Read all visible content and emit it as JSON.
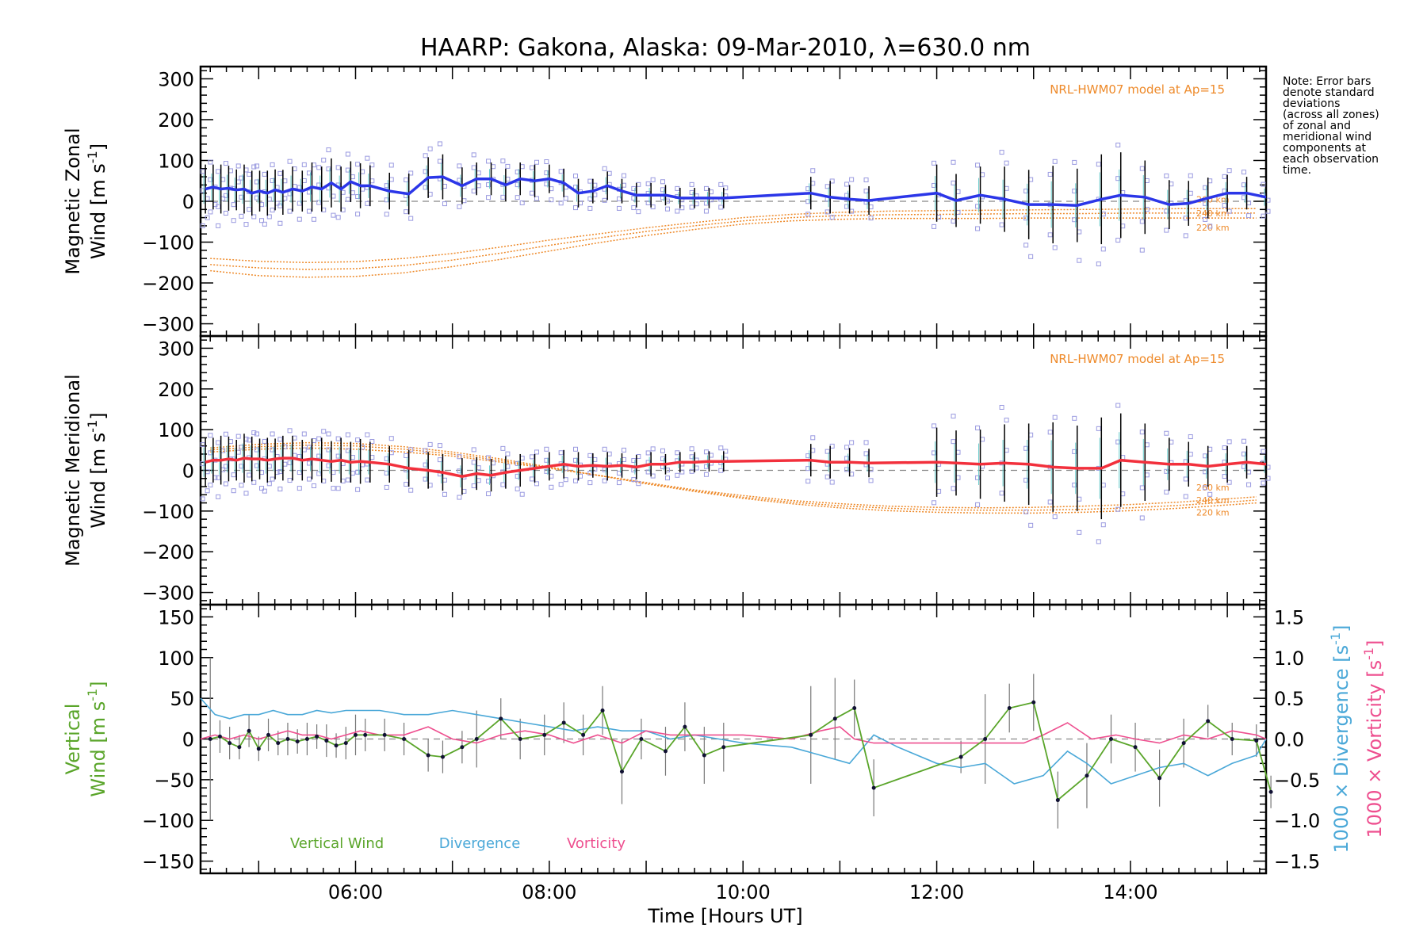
{
  "title": "HAARP: Gakona,  Alaska: 09-Mar-2010, λ=630.0 nm",
  "note_lines": [
    "Note: Error bars",
    "denote standard",
    "deviations",
    "(across all zones)",
    "of zonal and",
    "meridional wind",
    "components at",
    "each observation",
    "time."
  ],
  "xlabel": "Time [Hours UT]",
  "colors": {
    "zonal": "#2b36e8",
    "meridional": "#f2303c",
    "model": "#ee8a2a",
    "vertical": "#5aa52a",
    "divergence": "#4aa8d8",
    "vorticity": "#ee4f8f",
    "scatter": "#9a9ae0"
  },
  "chart_data": [
    {
      "type": "line",
      "panel": "zonal",
      "ylabel_line1": "Magnetic Zonal",
      "ylabel_line2": "Wind [m s",
      "ylabel_sup": "-1",
      "ylabel_close": "]",
      "xlim": [
        4.4,
        15.4
      ],
      "ylim": [
        -330,
        330
      ],
      "x_ticks": [
        6,
        8,
        10,
        12,
        14
      ],
      "x_tick_labels": [
        "06:00",
        "08:00",
        "10:00",
        "12:00",
        "14:00"
      ],
      "y_ticks": [
        -300,
        -200,
        -100,
        0,
        100,
        200,
        300
      ],
      "y_tick_labels": [
        "−300",
        "−200",
        "−100",
        "0",
        "100",
        "200",
        "300"
      ],
      "model_label": "NRL-HWM07 model at Ap=15",
      "model_alt_labels": [
        "260 km",
        "240 km",
        "220 km"
      ],
      "model_series": [
        {
          "x": [
            4.5,
            5.0,
            5.5,
            6.0,
            6.5,
            7.0,
            7.5,
            8.0,
            8.5,
            9.0,
            9.5,
            10.0,
            10.5,
            11.0,
            11.5,
            12.0,
            12.5,
            13.0,
            13.5,
            14.0,
            14.5,
            15.0,
            15.3
          ],
          "y": [
            -140,
            -147,
            -150,
            -148,
            -140,
            -128,
            -112,
            -95,
            -80,
            -65,
            -52,
            -40,
            -32,
            -27,
            -24,
            -23,
            -22,
            -21,
            -20,
            -19,
            -18,
            -18,
            -18
          ]
        },
        {
          "x": [
            4.5,
            5.0,
            5.5,
            6.0,
            6.5,
            7.0,
            7.5,
            8.0,
            8.5,
            9.0,
            9.5,
            10.0,
            10.5,
            11.0,
            11.5,
            12.0,
            12.5,
            13.0,
            13.5,
            14.0,
            14.5,
            15.0,
            15.3
          ],
          "y": [
            -155,
            -163,
            -167,
            -165,
            -157,
            -144,
            -127,
            -108,
            -90,
            -74,
            -60,
            -48,
            -40,
            -35,
            -33,
            -32,
            -31,
            -30,
            -30,
            -29,
            -29,
            -29,
            -29
          ]
        },
        {
          "x": [
            4.5,
            5.0,
            5.5,
            6.0,
            6.5,
            7.0,
            7.5,
            8.0,
            8.5,
            9.0,
            9.5,
            10.0,
            10.5,
            11.0,
            11.5,
            12.0,
            12.5,
            13.0,
            13.5,
            14.0,
            14.5,
            15.0,
            15.3
          ],
          "y": [
            -170,
            -182,
            -186,
            -184,
            -175,
            -160,
            -142,
            -122,
            -102,
            -84,
            -69,
            -56,
            -48,
            -44,
            -42,
            -42,
            -42,
            -41,
            -41,
            -41,
            -41,
            -41,
            -41
          ]
        }
      ],
      "wind_x": [
        4.45,
        4.53,
        4.61,
        4.69,
        4.77,
        4.85,
        4.93,
        5.01,
        5.09,
        5.17,
        5.25,
        5.35,
        5.45,
        5.55,
        5.65,
        5.75,
        5.85,
        5.95,
        6.05,
        6.15,
        6.35,
        6.55,
        6.75,
        6.9,
        7.1,
        7.25,
        7.4,
        7.55,
        7.7,
        7.85,
        8.0,
        8.15,
        8.3,
        8.45,
        8.6,
        8.75,
        8.9,
        9.05,
        9.2,
        9.35,
        9.5,
        9.65,
        9.8,
        10.7,
        10.9,
        11.1,
        11.3,
        12.0,
        12.2,
        12.45,
        12.7,
        12.95,
        13.2,
        13.45,
        13.7,
        13.9,
        14.15,
        14.4,
        14.6,
        14.8,
        15.0,
        15.2,
        15.4
      ],
      "wind_y": [
        30,
        35,
        30,
        32,
        28,
        30,
        20,
        25,
        20,
        28,
        22,
        30,
        25,
        35,
        30,
        45,
        30,
        48,
        38,
        38,
        25,
        18,
        58,
        60,
        38,
        55,
        55,
        40,
        55,
        50,
        55,
        45,
        20,
        25,
        38,
        25,
        15,
        15,
        15,
        8,
        8,
        8,
        8,
        20,
        10,
        5,
        2,
        20,
        2,
        15,
        5,
        -8,
        -8,
        -10,
        5,
        15,
        10,
        -8,
        -5,
        8,
        20,
        20,
        10
      ],
      "wind_err": [
        60,
        55,
        60,
        55,
        50,
        60,
        55,
        50,
        55,
        50,
        55,
        55,
        50,
        60,
        55,
        60,
        55,
        50,
        55,
        50,
        45,
        50,
        50,
        55,
        45,
        40,
        40,
        40,
        40,
        40,
        35,
        35,
        35,
        30,
        35,
        30,
        30,
        30,
        25,
        25,
        25,
        25,
        25,
        40,
        40,
        35,
        35,
        70,
        65,
        70,
        80,
        85,
        95,
        90,
        110,
        105,
        90,
        60,
        55,
        50,
        45,
        40,
        35
      ]
    },
    {
      "type": "line",
      "panel": "meridional",
      "ylabel_line1": "Magnetic Meridional",
      "ylabel_line2": "Wind [m s",
      "ylabel_sup": "-1",
      "ylabel_close": "]",
      "xlim": [
        4.4,
        15.4
      ],
      "ylim": [
        -330,
        330
      ],
      "y_ticks": [
        -300,
        -200,
        -100,
        0,
        100,
        200,
        300
      ],
      "y_tick_labels": [
        "−300",
        "−200",
        "−100",
        "0",
        "100",
        "200",
        "300"
      ],
      "model_label": "NRL-HWM07 model at Ap=15",
      "model_alt_labels": [
        "260 km",
        "240 km",
        "220 km"
      ],
      "model_series": [
        {
          "x": [
            4.5,
            5.0,
            5.5,
            6.0,
            6.5,
            7.0,
            7.5,
            8.0,
            8.5,
            9.0,
            9.5,
            10.0,
            10.5,
            11.0,
            11.5,
            12.0,
            12.5,
            13.0,
            13.5,
            14.0,
            14.5,
            15.0,
            15.3
          ],
          "y": [
            45,
            52,
            55,
            52,
            45,
            35,
            20,
            5,
            -12,
            -30,
            -48,
            -62,
            -74,
            -82,
            -88,
            -91,
            -92,
            -91,
            -88,
            -84,
            -78,
            -70,
            -65
          ]
        },
        {
          "x": [
            4.5,
            5.0,
            5.5,
            6.0,
            6.5,
            7.0,
            7.5,
            8.0,
            8.5,
            9.0,
            9.5,
            10.0,
            10.5,
            11.0,
            11.5,
            12.0,
            12.5,
            13.0,
            13.5,
            14.0,
            14.5,
            15.0,
            15.3
          ],
          "y": [
            50,
            58,
            62,
            60,
            52,
            40,
            24,
            6,
            -12,
            -32,
            -50,
            -66,
            -78,
            -87,
            -93,
            -97,
            -98,
            -98,
            -96,
            -92,
            -86,
            -78,
            -73
          ]
        },
        {
          "x": [
            4.5,
            5.0,
            5.5,
            6.0,
            6.5,
            7.0,
            7.5,
            8.0,
            8.5,
            9.0,
            9.5,
            10.0,
            10.5,
            11.0,
            11.5,
            12.0,
            12.5,
            13.0,
            13.5,
            14.0,
            14.5,
            15.0,
            15.3
          ],
          "y": [
            55,
            64,
            68,
            66,
            58,
            45,
            28,
            8,
            -12,
            -33,
            -52,
            -69,
            -82,
            -92,
            -99,
            -103,
            -105,
            -105,
            -103,
            -99,
            -93,
            -85,
            -80
          ]
        }
      ],
      "wind_x": [
        4.45,
        4.53,
        4.61,
        4.69,
        4.77,
        4.85,
        4.93,
        5.01,
        5.09,
        5.17,
        5.25,
        5.35,
        5.45,
        5.55,
        5.65,
        5.75,
        5.85,
        5.95,
        6.05,
        6.15,
        6.35,
        6.55,
        6.75,
        6.9,
        7.1,
        7.25,
        7.4,
        7.55,
        7.7,
        7.85,
        8.0,
        8.15,
        8.3,
        8.45,
        8.6,
        8.75,
        8.9,
        9.05,
        9.2,
        9.35,
        9.5,
        9.65,
        9.8,
        10.7,
        10.9,
        11.1,
        11.3,
        12.0,
        12.2,
        12.45,
        12.7,
        12.95,
        13.2,
        13.45,
        13.7,
        13.9,
        14.15,
        14.4,
        14.6,
        14.8,
        15.0,
        15.2,
        15.4
      ],
      "wind_y": [
        20,
        25,
        25,
        28,
        25,
        30,
        28,
        28,
        25,
        28,
        30,
        30,
        25,
        28,
        25,
        22,
        25,
        20,
        22,
        20,
        15,
        5,
        0,
        -5,
        -15,
        -8,
        -12,
        -5,
        0,
        5,
        10,
        15,
        10,
        12,
        10,
        12,
        8,
        15,
        15,
        20,
        20,
        22,
        22,
        25,
        20,
        20,
        18,
        20,
        18,
        15,
        18,
        15,
        8,
        5,
        5,
        25,
        20,
        15,
        15,
        10,
        15,
        20,
        15
      ],
      "wind_err": [
        60,
        55,
        60,
        55,
        50,
        60,
        55,
        50,
        55,
        50,
        55,
        55,
        50,
        50,
        55,
        50,
        55,
        50,
        55,
        50,
        45,
        45,
        45,
        45,
        45,
        40,
        40,
        40,
        40,
        35,
        35,
        35,
        35,
        30,
        35,
        30,
        30,
        30,
        25,
        25,
        25,
        25,
        25,
        40,
        40,
        35,
        35,
        85,
        80,
        85,
        95,
        100,
        110,
        105,
        125,
        115,
        95,
        65,
        55,
        50,
        45,
        40,
        35
      ]
    },
    {
      "type": "line",
      "panel": "vertical",
      "ylabel_line1": "Vertical",
      "ylabel_line2": "Wind [m s",
      "ylabel_sup": "-1",
      "ylabel_close": "]",
      "y2label_div": "1000 × Divergence [s",
      "y2label_vor": "1000 × Vorticity [s",
      "y2label_sup": "-1",
      "y2label_close": "]",
      "xlim": [
        4.4,
        15.4
      ],
      "ylim": [
        -165,
        165
      ],
      "y_ticks": [
        -150,
        -100,
        -50,
        0,
        50,
        100,
        150
      ],
      "y_tick_labels": [
        "−150",
        "−100",
        "−50",
        "0",
        "50",
        "100",
        "150"
      ],
      "y2lim": [
        -1.65,
        1.65
      ],
      "y2_ticks": [
        -1.5,
        -1.0,
        -0.5,
        0.0,
        0.5,
        1.0,
        1.5
      ],
      "y2_tick_labels": [
        "−1.5",
        "−1.0",
        "−0.5",
        "0.0",
        "0.5",
        "1.0",
        "1.5"
      ],
      "legend": [
        "Vertical Wind",
        "Divergence",
        "Vorticity"
      ],
      "vertical_x": [
        4.5,
        4.6,
        4.7,
        4.8,
        4.9,
        5.0,
        5.1,
        5.2,
        5.3,
        5.4,
        5.5,
        5.6,
        5.7,
        5.8,
        5.9,
        6.0,
        6.1,
        6.3,
        6.5,
        6.75,
        6.9,
        7.1,
        7.25,
        7.5,
        7.7,
        7.95,
        8.15,
        8.35,
        8.55,
        8.75,
        8.95,
        9.2,
        9.4,
        9.6,
        9.8,
        10.7,
        10.95,
        11.15,
        11.35,
        12.25,
        12.5,
        12.75,
        13.0,
        13.25,
        13.55,
        13.8,
        14.05,
        14.3,
        14.55,
        14.8,
        15.05,
        15.3,
        15.45
      ],
      "vertical_y": [
        0,
        3,
        -5,
        -10,
        10,
        -12,
        5,
        -5,
        0,
        -3,
        0,
        3,
        -2,
        -8,
        -5,
        5,
        5,
        5,
        0,
        -20,
        -22,
        -10,
        0,
        25,
        0,
        5,
        20,
        5,
        35,
        -40,
        0,
        -15,
        15,
        -20,
        -10,
        5,
        25,
        38,
        -60,
        -22,
        0,
        38,
        45,
        -75,
        -45,
        0,
        -10,
        -48,
        -5,
        22,
        0,
        -2,
        -65
      ],
      "vertical_err": [
        100,
        20,
        20,
        15,
        20,
        15,
        20,
        15,
        20,
        15,
        20,
        15,
        20,
        15,
        20,
        25,
        20,
        20,
        20,
        20,
        20,
        20,
        35,
        25,
        25,
        25,
        25,
        25,
        30,
        40,
        25,
        30,
        30,
        35,
        30,
        60,
        50,
        35,
        35,
        20,
        55,
        30,
        35,
        35,
        40,
        30,
        30,
        35,
        30,
        20,
        20,
        20,
        20
      ],
      "divergence_x": [
        4.4,
        4.55,
        4.7,
        4.85,
        5.0,
        5.15,
        5.3,
        5.45,
        5.6,
        5.75,
        5.9,
        6.05,
        6.25,
        6.5,
        6.75,
        7.0,
        7.25,
        7.5,
        7.75,
        8.0,
        8.25,
        8.5,
        8.75,
        9.0,
        9.25,
        9.5,
        9.75,
        10.0,
        10.5,
        10.8,
        11.1,
        11.35,
        11.6,
        12.0,
        12.25,
        12.5,
        12.8,
        13.1,
        13.35,
        13.55,
        13.8,
        14.05,
        14.3,
        14.55,
        14.8,
        15.05,
        15.3,
        15.4
      ],
      "divergence_y": [
        0.5,
        0.3,
        0.25,
        0.3,
        0.3,
        0.35,
        0.3,
        0.3,
        0.35,
        0.32,
        0.35,
        0.35,
        0.35,
        0.3,
        0.3,
        0.35,
        0.3,
        0.25,
        0.2,
        0.15,
        0.1,
        0.15,
        0.1,
        0.1,
        0.0,
        0.05,
        0.0,
        -0.05,
        -0.1,
        -0.2,
        -0.3,
        0.05,
        -0.1,
        -0.3,
        -0.35,
        -0.3,
        -0.55,
        -0.45,
        -0.15,
        -0.3,
        -0.55,
        -0.45,
        -0.35,
        -0.3,
        -0.45,
        -0.3,
        -0.2,
        0.0
      ],
      "vorticity_x": [
        4.4,
        4.55,
        4.7,
        4.85,
        5.0,
        5.15,
        5.3,
        5.45,
        5.6,
        5.75,
        5.9,
        6.05,
        6.25,
        6.5,
        6.75,
        7.0,
        7.25,
        7.5,
        7.75,
        8.0,
        8.25,
        8.5,
        8.75,
        9.0,
        9.25,
        9.5,
        9.75,
        10.0,
        10.5,
        10.8,
        11.0,
        11.15,
        11.35,
        11.6,
        12.0,
        12.3,
        12.6,
        12.9,
        13.1,
        13.35,
        13.6,
        13.85,
        14.05,
        14.3,
        14.55,
        14.8,
        15.05,
        15.3,
        15.4
      ],
      "vorticity_y": [
        0.0,
        0.05,
        0.0,
        0.05,
        0.0,
        0.05,
        0.1,
        0.05,
        0.05,
        0.0,
        0.05,
        0.1,
        0.05,
        0.05,
        0.15,
        0.0,
        -0.05,
        0.05,
        0.1,
        0.05,
        -0.05,
        0.05,
        -0.05,
        0.1,
        0.05,
        0.05,
        0.05,
        0.05,
        0.0,
        0.1,
        0.15,
        0.0,
        -0.05,
        -0.05,
        -0.05,
        -0.05,
        -0.05,
        -0.05,
        0.05,
        0.2,
        0.0,
        0.05,
        0.0,
        -0.05,
        0.05,
        0.0,
        0.1,
        0.05,
        0.0
      ]
    }
  ]
}
